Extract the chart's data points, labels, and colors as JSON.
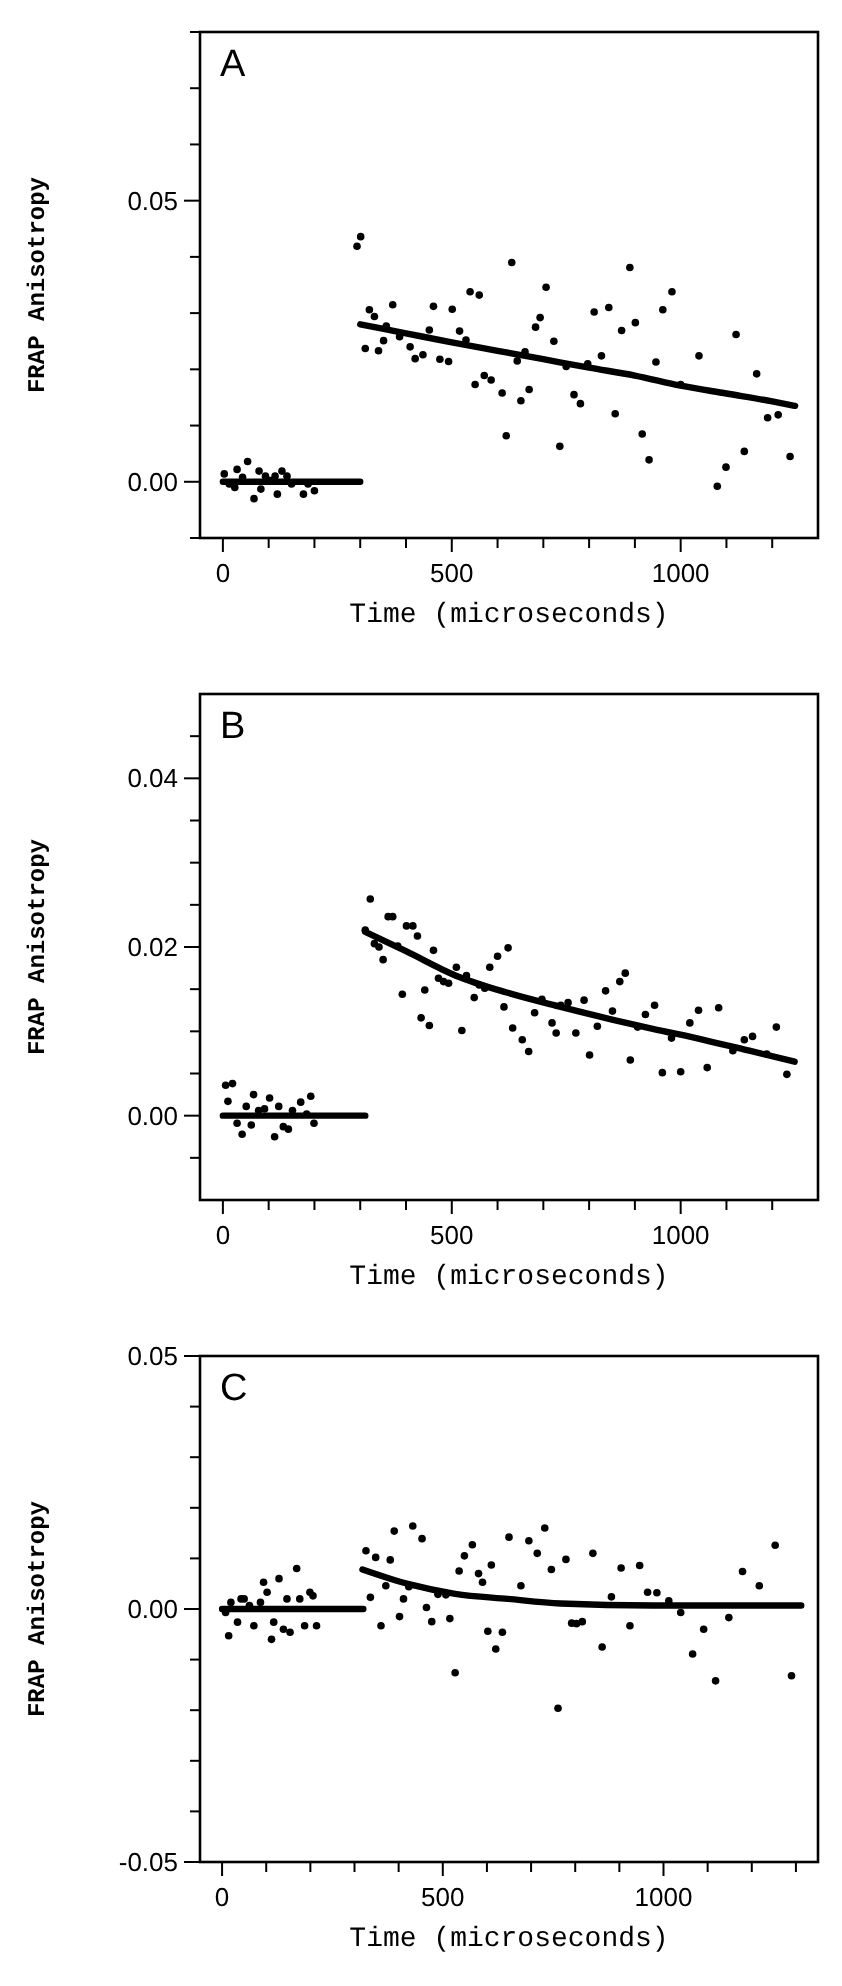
{
  "chart_data": [
    {
      "type": "scatter",
      "annotations": [
        "A"
      ],
      "xlabel": "Time (microseconds)",
      "ylabel": "FRAP Anisotropy",
      "xlim": [
        -50,
        1300
      ],
      "ylim": [
        -0.01,
        0.08
      ],
      "xticks": [
        0,
        {
          "value": 100,
          "label": null
        },
        {
          "value": 200,
          "label": null
        },
        {
          "value": 300,
          "label": null
        },
        {
          "value": 400,
          "label": null
        },
        500,
        {
          "value": 600,
          "label": null
        },
        {
          "value": 700,
          "label": null
        },
        {
          "value": 800,
          "label": null
        },
        {
          "value": 900,
          "label": null
        },
        1000,
        {
          "value": 1100,
          "label": null
        },
        {
          "value": 1200,
          "label": null
        }
      ],
      "yticks": [
        {
          "value": -0.01,
          "label": null
        },
        {
          "value": 0,
          "label": "0.00"
        },
        {
          "value": 0.01,
          "label": null
        },
        {
          "value": 0.02,
          "label": null
        },
        {
          "value": 0.03,
          "label": null
        },
        {
          "value": 0.04,
          "label": null
        },
        {
          "value": 0.05,
          "label": "0.05"
        },
        {
          "value": 0.06,
          "label": null
        },
        {
          "value": 0.07,
          "label": null
        },
        {
          "value": 0.08,
          "label": null
        }
      ],
      "series": [
        {
          "color": "#000000",
          "marker": "circle",
          "x": [
            3,
            14,
            26,
            31,
            43,
            54,
            68,
            79,
            83,
            93,
            103,
            114,
            119,
            129,
            140,
            150,
            176,
            186,
            200,
            293,
            301,
            311,
            320,
            331,
            340,
            351,
            357,
            371,
            386,
            409,
            420,
            437,
            451,
            460,
            474,
            493,
            501,
            517,
            531,
            540,
            551,
            560,
            571,
            586,
            610,
            619,
            631,
            643,
            651,
            660,
            669,
            683,
            693,
            706,
            723,
            736,
            750,
            767,
            781,
            797,
            811,
            827,
            843,
            857,
            871,
            889,
            901,
            916,
            931,
            946,
            961,
            981,
            1000,
            1040,
            1080,
            1099,
            1121,
            1139,
            1166,
            1190,
            1213,
            1239
          ],
          "values": [
            0.0014,
            -0.0004,
            -0.001,
            0.0022,
            0.0008,
            0.0036,
            -0.003,
            0.0019,
            -0.0013,
            0.001,
            0.0002,
            0.001,
            -0.0022,
            0.0019,
            0.001,
            -0.0004,
            -0.0022,
            -0.0004,
            -0.0016,
            0.0419,
            0.0436,
            0.0237,
            0.0306,
            0.0294,
            0.0233,
            0.0251,
            0.0277,
            0.0315,
            0.0258,
            0.024,
            0.0219,
            0.0226,
            0.027,
            0.0312,
            0.0218,
            0.0214,
            0.0307,
            0.0268,
            0.0252,
            0.0338,
            0.0173,
            0.0332,
            0.0189,
            0.0181,
            0.0158,
            0.0082,
            0.039,
            0.0215,
            0.0144,
            0.0231,
            0.0164,
            0.0275,
            0.0292,
            0.0346,
            0.025,
            0.0063,
            0.0205,
            0.0155,
            0.0139,
            0.021,
            0.0302,
            0.0224,
            0.031,
            0.0121,
            0.0269,
            0.0381,
            0.0283,
            0.0085,
            0.0039,
            0.0213,
            0.0306,
            0.0338,
            0.0173,
            0.0224,
            -0.0008,
            0.0026,
            0.0262,
            0.0054,
            0.0192,
            0.0114,
            0.0119,
            0.0045
          ]
        },
        {
          "type": "line",
          "color": "#000000",
          "x": [
            0,
            300
          ],
          "values": [
            0,
            0
          ]
        },
        {
          "type": "line",
          "color": "#000000",
          "x": [
            300,
            400,
            500,
            600,
            700,
            800,
            900,
            1000,
            1100,
            1200,
            1250
          ],
          "values": [
            0.028,
            0.0264,
            0.0248,
            0.0233,
            0.0218,
            0.0203,
            0.0189,
            0.0171,
            0.0157,
            0.0143,
            0.0135
          ]
        }
      ]
    },
    {
      "type": "scatter",
      "annotations": [
        "B"
      ],
      "xlabel": "Time (microseconds)",
      "ylabel": "FRAP Anisotropy",
      "xlim": [
        -50,
        1300
      ],
      "ylim": [
        -0.01,
        0.05
      ],
      "xticks": [
        0,
        {
          "value": 100,
          "label": null
        },
        {
          "value": 200,
          "label": null
        },
        {
          "value": 300,
          "label": null
        },
        {
          "value": 400,
          "label": null
        },
        500,
        {
          "value": 600,
          "label": null
        },
        {
          "value": 700,
          "label": null
        },
        {
          "value": 800,
          "label": null
        },
        {
          "value": 900,
          "label": null
        },
        1000,
        {
          "value": 1100,
          "label": null
        },
        {
          "value": 1200,
          "label": null
        }
      ],
      "yticks": [
        {
          "value": -0.005,
          "label": null
        },
        {
          "value": 0,
          "label": "0.00"
        },
        {
          "value": 0.005,
          "label": null
        },
        {
          "value": 0.01,
          "label": null
        },
        {
          "value": 0.015,
          "label": null
        },
        {
          "value": 0.02,
          "label": "0.02"
        },
        {
          "value": 0.025,
          "label": null
        },
        {
          "value": 0.03,
          "label": null
        },
        {
          "value": 0.035,
          "label": null
        },
        {
          "value": 0.04,
          "label": "0.04"
        },
        {
          "value": 0.045,
          "label": null
        }
      ],
      "series": [
        {
          "color": "#000000",
          "marker": "circle",
          "x": [
            6,
            11,
            21,
            31,
            42,
            51,
            62,
            67,
            78,
            91,
            102,
            113,
            122,
            132,
            143,
            152,
            170,
            183,
            192,
            199,
            311,
            322,
            331,
            341,
            350,
            361,
            371,
            382,
            392,
            401,
            415,
            425,
            433,
            441,
            451,
            460,
            471,
            482,
            493,
            510,
            522,
            532,
            549,
            560,
            572,
            583,
            600,
            614,
            623,
            633,
            654,
            668,
            681,
            697,
            719,
            728,
            738,
            754,
            771,
            789,
            801,
            818,
            836,
            851,
            867,
            879,
            890,
            906,
            923,
            943,
            960,
            980,
            1000,
            1020,
            1039,
            1058,
            1083,
            1114,
            1139,
            1157,
            1188,
            1209,
            1232
          ],
          "values": [
            0.0036,
            0.0017,
            0.0038,
            -0.0009,
            -0.0022,
            0.0011,
            -0.0011,
            0.0025,
            0.0006,
            0.0008,
            0.0021,
            -0.0025,
            0.0011,
            -0.0013,
            -0.0016,
            0.0006,
            0.0016,
            0.0002,
            0.0023,
            -0.0009,
            0.022,
            0.0257,
            0.0204,
            0.02,
            0.0185,
            0.0236,
            0.0236,
            0.0201,
            0.0144,
            0.0225,
            0.0225,
            0.0213,
            0.0116,
            0.0149,
            0.0107,
            0.0196,
            0.0163,
            0.0159,
            0.0157,
            0.0176,
            0.0101,
            0.0166,
            0.014,
            0.0155,
            0.0151,
            0.0176,
            0.0189,
            0.0129,
            0.0199,
            0.0104,
            0.009,
            0.0076,
            0.0122,
            0.0138,
            0.011,
            0.0098,
            0.0131,
            0.0134,
            0.0098,
            0.0137,
            0.0072,
            0.0106,
            0.0148,
            0.0124,
            0.0159,
            0.0169,
            0.0066,
            0.0105,
            0.012,
            0.0131,
            0.0051,
            0.0092,
            0.0052,
            0.011,
            0.0125,
            0.0057,
            0.0128,
            0.0077,
            0.009,
            0.0094,
            0.0073,
            0.0105,
            0.0049
          ]
        },
        {
          "type": "line",
          "color": "#000000",
          "x": [
            0,
            311
          ],
          "values": [
            0,
            0
          ]
        },
        {
          "type": "line",
          "color": "#000000",
          "x": [
            311,
            400,
            509,
            620,
            738,
            850,
            939,
            1050,
            1150,
            1249
          ],
          "values": [
            0.0218,
            0.0195,
            0.0166,
            0.0146,
            0.0129,
            0.0114,
            0.0103,
            0.009,
            0.0077,
            0.0064
          ]
        }
      ]
    },
    {
      "type": "scatter",
      "annotations": [
        "C"
      ],
      "xlabel": "Time (microseconds)",
      "ylabel": "FRAP Anisotropy",
      "xlim": [
        -50,
        1350
      ],
      "ylim": [
        -0.05,
        0.05
      ],
      "xticks": [
        0,
        {
          "value": 100,
          "label": null
        },
        {
          "value": 200,
          "label": null
        },
        {
          "value": 300,
          "label": null
        },
        {
          "value": 400,
          "label": null
        },
        500,
        {
          "value": 600,
          "label": null
        },
        {
          "value": 700,
          "label": null
        },
        {
          "value": 800,
          "label": null
        },
        {
          "value": 900,
          "label": null
        },
        1000,
        {
          "value": 1100,
          "label": null
        },
        {
          "value": 1200,
          "label": null
        },
        {
          "value": 1300,
          "label": null
        }
      ],
      "yticks": [
        {
          "value": -0.05,
          "label": "-0.05"
        },
        {
          "value": -0.04,
          "label": null
        },
        {
          "value": -0.03,
          "label": null
        },
        {
          "value": -0.02,
          "label": null
        },
        {
          "value": -0.01,
          "label": null
        },
        {
          "value": 0,
          "label": "0.00"
        },
        {
          "value": 0.01,
          "label": null
        },
        {
          "value": 0.02,
          "label": null
        },
        {
          "value": 0.03,
          "label": null
        },
        {
          "value": 0.04,
          "label": null
        },
        {
          "value": 0.05,
          "label": "0.05"
        }
      ],
      "series": [
        {
          "color": "#000000",
          "marker": "circle",
          "x": [
            8,
            15,
            20,
            35,
            43,
            50,
            62,
            72,
            87,
            94,
            102,
            112,
            117,
            129,
            139,
            147,
            154,
            169,
            176,
            187,
            199,
            206,
            214,
            326,
            336,
            348,
            360,
            371,
            381,
            390,
            402,
            411,
            423,
            432,
            453,
            463,
            475,
            489,
            507,
            516,
            528,
            537,
            549,
            567,
            581,
            590,
            602,
            610,
            620,
            635,
            650,
            677,
            695,
            714,
            731,
            746,
            761,
            779,
            792,
            803,
            816,
            840,
            861,
            882,
            904,
            924,
            946,
            964,
            985,
            1012,
            1039,
            1066,
            1091,
            1118,
            1148,
            1179,
            1217,
            1253,
            1290
          ],
          "values": [
            -0.0007,
            -0.0053,
            0.0013,
            -0.0026,
            0.002,
            0.002,
            0.0007,
            -0.0033,
            0.0013,
            0.0053,
            0.0033,
            -0.006,
            -0.0026,
            0.006,
            -0.004,
            0.002,
            -0.0046,
            0.008,
            0.002,
            -0.0033,
            0.0033,
            0.0026,
            -0.0033,
            0.0115,
            0.0023,
            0.0102,
            -0.0033,
            0.0046,
            0.0097,
            0.0154,
            -0.0015,
            0.002,
            0.0044,
            0.0164,
            0.0139,
            0.0003,
            -0.0025,
            0.0029,
            0.0028,
            -0.0019,
            -0.0126,
            0.0075,
            0.0105,
            0.0127,
            0.007,
            0.0053,
            -0.0044,
            0.0087,
            -0.0079,
            -0.0046,
            0.0142,
            0.0046,
            0.0135,
            0.011,
            0.016,
            0.0078,
            -0.0196,
            0.0098,
            -0.0028,
            -0.0029,
            -0.0025,
            0.011,
            -0.0075,
            0.0024,
            0.0081,
            -0.0033,
            0.0086,
            0.0033,
            0.0032,
            0.0016,
            -0.0007,
            -0.0089,
            -0.004,
            -0.0142,
            -0.0017,
            0.0074,
            0.0046,
            0.0126,
            -0.0132
          ]
        },
        {
          "type": "line",
          "color": "#000000",
          "x": [
            0,
            320
          ],
          "values": [
            0,
            0
          ]
        },
        {
          "type": "line",
          "color": "#000000",
          "x": [
            318,
            423,
            528,
            647,
            767,
            976,
            1312
          ],
          "values": [
            0.0078,
            0.0049,
            0.003,
            0.002,
            0.0011,
            0.0007,
            0.0007
          ]
        }
      ]
    }
  ]
}
